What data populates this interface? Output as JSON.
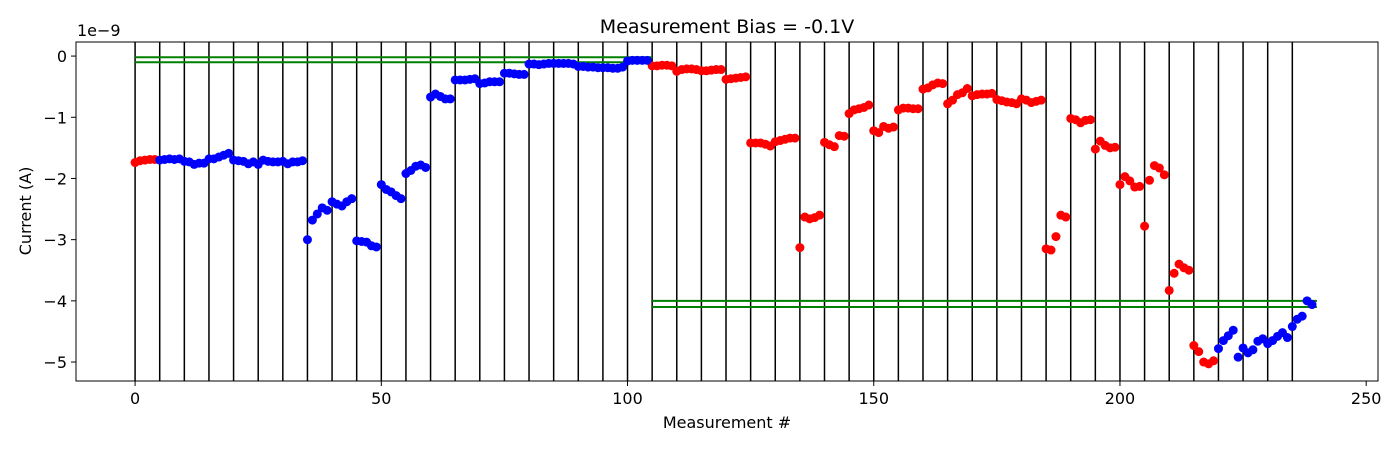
{
  "chart_data": {
    "type": "scatter",
    "title": "Measurement Bias = -0.1V",
    "xlabel": "Measurement #",
    "ylabel": "Current (A)",
    "y_offset_label": "1e−9",
    "xlim": [
      -12,
      252.4
    ],
    "ylim": [
      -5.31,
      0.23
    ],
    "xticks": [
      0,
      50,
      100,
      150,
      200,
      250
    ],
    "yticks": [
      {
        "value": -5,
        "label": "−5"
      },
      {
        "value": -4,
        "label": "−4"
      },
      {
        "value": -3,
        "label": "−3"
      },
      {
        "value": -2,
        "label": "−2"
      },
      {
        "value": -1,
        "label": "−1"
      },
      0
    ],
    "vlines": [
      0,
      5,
      10,
      15,
      20,
      25,
      30,
      35,
      40,
      45,
      50,
      55,
      60,
      65,
      70,
      75,
      80,
      85,
      90,
      95,
      100,
      105,
      110,
      115,
      120,
      125,
      130,
      135,
      140,
      145,
      150,
      155,
      160,
      165,
      170,
      175,
      180,
      185,
      190,
      195,
      200,
      205,
      210,
      215,
      220,
      225,
      230,
      235
    ],
    "vline_color": "#000000",
    "hlines": [
      {
        "y": -0.02,
        "xmin": 0,
        "xmax": 105
      },
      {
        "y": -0.1,
        "xmin": 0,
        "xmax": 105
      },
      {
        "y": -4.0,
        "xmin": 105,
        "xmax": 240
      },
      {
        "y": -4.1,
        "xmin": 105,
        "xmax": 240
      }
    ],
    "hline_color": "#008000",
    "series": [
      {
        "color": "#ff0000",
        "x": [
          0,
          1,
          2,
          3,
          4,
          105,
          106,
          107,
          108,
          109,
          110,
          111,
          112,
          113,
          114,
          115,
          116,
          117,
          118,
          119,
          120,
          121,
          122,
          123,
          124,
          125,
          126,
          127,
          128,
          129,
          130,
          131,
          132,
          133,
          134,
          135,
          136,
          137,
          138,
          139,
          140,
          141,
          142,
          143,
          144,
          145,
          146,
          147,
          148,
          149,
          150,
          151,
          152,
          153,
          154,
          155,
          156,
          157,
          158,
          159,
          160,
          161,
          162,
          163,
          164,
          165,
          166,
          167,
          168,
          169,
          170,
          171,
          172,
          173,
          174,
          175,
          176,
          177,
          178,
          179,
          180,
          181,
          182,
          183,
          184,
          185,
          186,
          187,
          188,
          189,
          190,
          191,
          192,
          193,
          194,
          195,
          196,
          197,
          198,
          199,
          200,
          201,
          202,
          203,
          204,
          205,
          206,
          207,
          208,
          209,
          210,
          211,
          212,
          213,
          214,
          215,
          216,
          217,
          218,
          219
        ],
        "values": [
          -1.74,
          -1.71,
          -1.7,
          -1.69,
          -1.69,
          -0.16,
          -0.16,
          -0.15,
          -0.15,
          -0.16,
          -0.25,
          -0.22,
          -0.21,
          -0.21,
          -0.22,
          -0.24,
          -0.24,
          -0.23,
          -0.22,
          -0.22,
          -0.38,
          -0.37,
          -0.36,
          -0.35,
          -0.34,
          -1.42,
          -1.42,
          -1.42,
          -1.44,
          -1.47,
          -1.4,
          -1.38,
          -1.36,
          -1.34,
          -1.34,
          -3.13,
          -2.63,
          -2.66,
          -2.64,
          -2.6,
          -1.41,
          -1.45,
          -1.48,
          -1.3,
          -1.31,
          -0.94,
          -0.88,
          -0.86,
          -0.84,
          -0.8,
          -1.22,
          -1.25,
          -1.15,
          -1.18,
          -1.16,
          -0.88,
          -0.85,
          -0.85,
          -0.86,
          -0.86,
          -0.54,
          -0.52,
          -0.47,
          -0.44,
          -0.45,
          -0.78,
          -0.72,
          -0.63,
          -0.6,
          -0.53,
          -0.65,
          -0.63,
          -0.62,
          -0.62,
          -0.61,
          -0.71,
          -0.73,
          -0.75,
          -0.76,
          -0.78,
          -0.7,
          -0.72,
          -0.76,
          -0.74,
          -0.72,
          -3.15,
          -3.17,
          -2.95,
          -2.6,
          -2.63,
          -1.02,
          -1.04,
          -1.09,
          -1.05,
          -1.04,
          -1.52,
          -1.39,
          -1.46,
          -1.5,
          -1.49,
          -2.1,
          -1.97,
          -2.04,
          -2.14,
          -2.13,
          -2.78,
          -2.03,
          -1.79,
          -1.83,
          -1.94,
          -3.83,
          -3.55,
          -3.4,
          -3.46,
          -3.5,
          -4.73,
          -4.83,
          -5.0,
          -5.03,
          -4.98
        ]
      },
      {
        "color": "#0000ff",
        "x": [
          5,
          6,
          7,
          8,
          9,
          10,
          11,
          12,
          13,
          14,
          15,
          16,
          17,
          18,
          19,
          20,
          21,
          22,
          23,
          24,
          25,
          26,
          27,
          28,
          29,
          30,
          31,
          32,
          33,
          34,
          35,
          36,
          37,
          38,
          39,
          40,
          41,
          42,
          43,
          44,
          45,
          46,
          47,
          48,
          49,
          50,
          51,
          52,
          53,
          54,
          55,
          56,
          57,
          58,
          59,
          60,
          61,
          62,
          63,
          64,
          65,
          66,
          67,
          68,
          69,
          70,
          71,
          72,
          73,
          74,
          75,
          76,
          77,
          78,
          79,
          80,
          81,
          82,
          83,
          84,
          85,
          86,
          87,
          88,
          89,
          90,
          91,
          92,
          93,
          94,
          95,
          96,
          97,
          98,
          99,
          100,
          101,
          102,
          103,
          104,
          220,
          221,
          222,
          223,
          224,
          225,
          226,
          227,
          228,
          229,
          230,
          231,
          232,
          233,
          234,
          235,
          236,
          237,
          238,
          239
        ],
        "values": [
          -1.7,
          -1.69,
          -1.68,
          -1.69,
          -1.68,
          -1.72,
          -1.73,
          -1.77,
          -1.75,
          -1.75,
          -1.68,
          -1.68,
          -1.65,
          -1.62,
          -1.59,
          -1.7,
          -1.71,
          -1.72,
          -1.76,
          -1.73,
          -1.77,
          -1.7,
          -1.72,
          -1.73,
          -1.73,
          -1.72,
          -1.76,
          -1.73,
          -1.73,
          -1.71,
          -3.0,
          -2.68,
          -2.58,
          -2.48,
          -2.52,
          -2.38,
          -2.42,
          -2.45,
          -2.38,
          -2.33,
          -3.02,
          -3.03,
          -3.04,
          -3.1,
          -3.12,
          -2.1,
          -2.18,
          -2.22,
          -2.28,
          -2.33,
          -1.92,
          -1.87,
          -1.8,
          -1.78,
          -1.82,
          -0.67,
          -0.62,
          -0.66,
          -0.7,
          -0.7,
          -0.39,
          -0.39,
          -0.39,
          -0.38,
          -0.37,
          -0.45,
          -0.44,
          -0.42,
          -0.42,
          -0.42,
          -0.28,
          -0.28,
          -0.29,
          -0.3,
          -0.3,
          -0.13,
          -0.13,
          -0.14,
          -0.13,
          -0.12,
          -0.12,
          -0.12,
          -0.12,
          -0.12,
          -0.13,
          -0.17,
          -0.17,
          -0.18,
          -0.18,
          -0.19,
          -0.19,
          -0.19,
          -0.2,
          -0.2,
          -0.18,
          -0.08,
          -0.07,
          -0.07,
          -0.07,
          -0.07,
          -4.78,
          -4.65,
          -4.57,
          -4.48,
          -4.92,
          -4.77,
          -4.85,
          -4.8,
          -4.66,
          -4.62,
          -4.7,
          -4.65,
          -4.58,
          -4.52,
          -4.6,
          -4.42,
          -4.3,
          -4.25,
          -4.0,
          -4.06
        ]
      }
    ]
  }
}
